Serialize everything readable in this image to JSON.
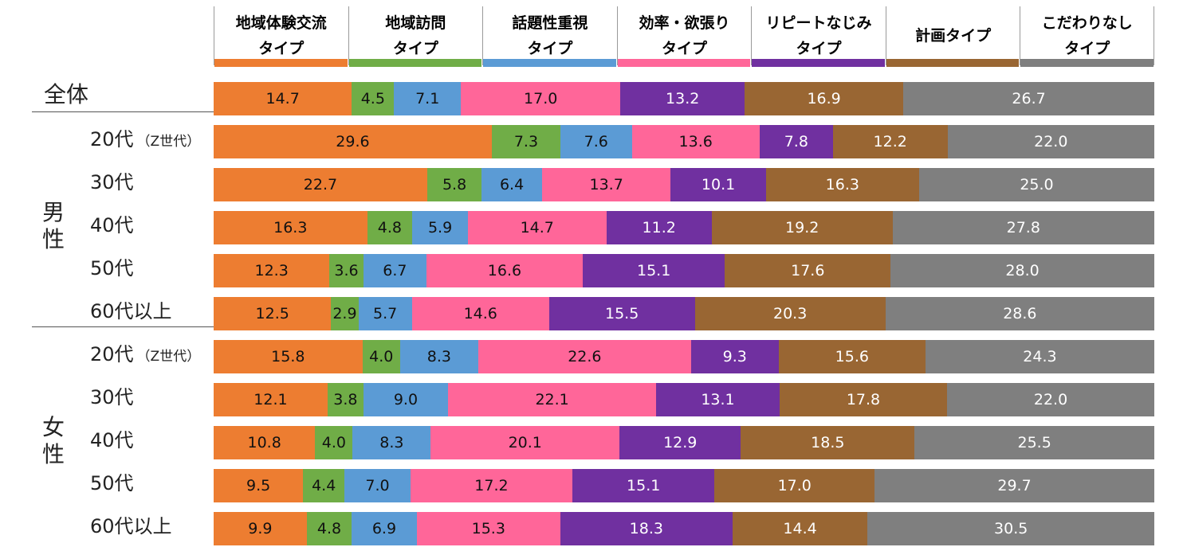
{
  "chart_data": {
    "type": "bar",
    "orientation": "horizontal-stacked-100",
    "series": [
      {
        "name": "地域体験交流\nタイプ",
        "color": "#ED7D31"
      },
      {
        "name": "地域訪問\nタイプ",
        "color": "#70AD47"
      },
      {
        "name": "話題性重視\nタイプ",
        "color": "#5B9BD5"
      },
      {
        "name": "効率・欲張り\nタイプ",
        "color": "#FF6699"
      },
      {
        "name": "リピートなじみ\nタイプ",
        "color": "#7030A0"
      },
      {
        "name": "計画タイプ",
        "color": "#996633"
      },
      {
        "name": "こだわりなし\nタイプ",
        "color": "#7F7F7F"
      }
    ],
    "groups": [
      {
        "label": "全体",
        "rows": [
          {
            "label": "全体",
            "values": [
              14.7,
              4.5,
              7.1,
              17.0,
              13.2,
              16.9,
              26.7
            ]
          }
        ]
      },
      {
        "label": "男性",
        "rows": [
          {
            "label": "20代",
            "sub": "（Z世代）",
            "values": [
              29.6,
              7.3,
              7.6,
              13.6,
              7.8,
              12.2,
              22.0
            ]
          },
          {
            "label": "30代",
            "values": [
              22.7,
              5.8,
              6.4,
              13.7,
              10.1,
              16.3,
              25.0
            ]
          },
          {
            "label": "40代",
            "values": [
              16.3,
              4.8,
              5.9,
              14.7,
              11.2,
              19.2,
              27.8
            ]
          },
          {
            "label": "50代",
            "values": [
              12.3,
              3.6,
              6.7,
              16.6,
              15.1,
              17.6,
              28.0
            ]
          },
          {
            "label": "60代以上",
            "values": [
              12.5,
              2.9,
              5.7,
              14.6,
              15.5,
              20.3,
              28.6
            ]
          }
        ]
      },
      {
        "label": "女性",
        "rows": [
          {
            "label": "20代",
            "sub": "（Z世代）",
            "values": [
              15.8,
              4.0,
              8.3,
              22.6,
              9.3,
              15.6,
              24.3
            ]
          },
          {
            "label": "30代",
            "values": [
              12.1,
              3.8,
              9.0,
              22.1,
              13.1,
              17.8,
              22.0
            ]
          },
          {
            "label": "40代",
            "values": [
              10.8,
              4.0,
              8.3,
              20.1,
              12.9,
              18.5,
              25.5
            ]
          },
          {
            "label": "50代",
            "values": [
              9.5,
              4.4,
              7.0,
              17.2,
              15.1,
              17.0,
              29.7
            ]
          },
          {
            "label": "60代以上",
            "values": [
              9.9,
              4.8,
              6.9,
              15.3,
              18.3,
              14.4,
              30.5
            ]
          }
        ]
      }
    ],
    "xlim": [
      0,
      100
    ],
    "legend": "top",
    "grid": false
  }
}
